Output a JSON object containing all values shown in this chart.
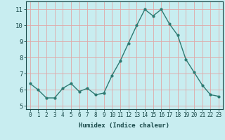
{
  "x": [
    0,
    1,
    2,
    3,
    4,
    5,
    6,
    7,
    8,
    9,
    10,
    11,
    12,
    13,
    14,
    15,
    16,
    17,
    18,
    19,
    20,
    21,
    22,
    23
  ],
  "y": [
    6.4,
    6.0,
    5.5,
    5.5,
    6.1,
    6.4,
    5.9,
    6.1,
    5.7,
    5.8,
    6.9,
    7.8,
    8.9,
    10.0,
    11.0,
    10.6,
    11.0,
    10.1,
    9.4,
    7.9,
    7.1,
    6.3,
    5.7,
    5.6
  ],
  "xlabel": "Humidex (Indice chaleur)",
  "xlim": [
    -0.5,
    23.5
  ],
  "ylim": [
    4.8,
    11.5
  ],
  "yticks": [
    5,
    6,
    7,
    8,
    9,
    10,
    11
  ],
  "xticks": [
    0,
    1,
    2,
    3,
    4,
    5,
    6,
    7,
    8,
    9,
    10,
    11,
    12,
    13,
    14,
    15,
    16,
    17,
    18,
    19,
    20,
    21,
    22,
    23
  ],
  "line_color": "#2d7a72",
  "marker": "o",
  "marker_size": 2.0,
  "bg_color": "#c8edf0",
  "grid_color": "#dfa8a8",
  "font_color": "#1a4a4a",
  "xlabel_fontsize": 6.5,
  "tick_fontsize_x": 5.5,
  "tick_fontsize_y": 6.5
}
